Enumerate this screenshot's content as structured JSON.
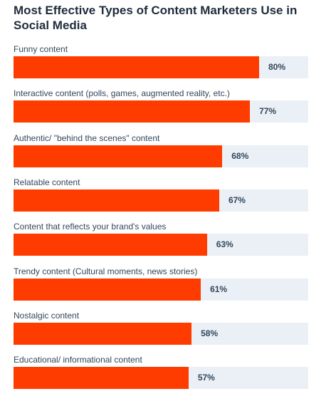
{
  "chart_data": {
    "type": "bar",
    "orientation": "horizontal",
    "title": "Most Effective Types of Content Marketers Use in Social Media",
    "categories": [
      "Funny content",
      "Interactive content (polls, games, augmented reality, etc.)",
      "Authentic/ \"behind the scenes\" content",
      "Relatable content",
      "Content that reflects your brand's values",
      "Trendy content (Cultural moments, news stories)",
      "Nostalgic content",
      "Educational/ informational content"
    ],
    "values": [
      80,
      77,
      68,
      67,
      63,
      61,
      58,
      57
    ],
    "value_labels": [
      "80%",
      "77%",
      "68%",
      "67%",
      "63%",
      "61%",
      "58%",
      "57%"
    ],
    "xlabel": "",
    "ylabel": "",
    "xlim": [
      0,
      96
    ],
    "grid": false,
    "legend": "none",
    "colors": {
      "bar": "#ff3c00",
      "track": "#eaf0f6",
      "text": "#33475b",
      "title": "#1f2d3d"
    }
  }
}
